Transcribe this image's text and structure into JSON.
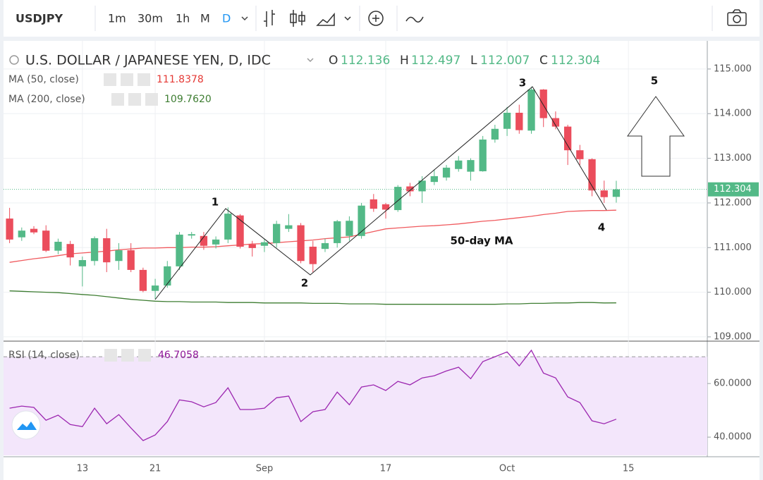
{
  "toolbar": {
    "symbol": "USDJPY",
    "intervals": [
      "1m",
      "30m",
      "1h",
      "M",
      "D"
    ]
  },
  "annotations": [
    "1",
    "2",
    "3",
    "4",
    "5",
    "50-day MA"
  ],
  "chart_data": [
    {
      "type": "candlestick",
      "title": "U.S. DOLLAR / JAPANESE YEN, D, IDC",
      "ohlc_letters": [
        "O",
        "H",
        "L",
        "C"
      ],
      "up_color": "#53b987",
      "down_color": "#eb4d5c",
      "categories": [
        null,
        null,
        null,
        null,
        null,
        null,
        "13",
        null,
        null,
        null,
        null,
        null,
        "21",
        null,
        null,
        null,
        null,
        null,
        null,
        null,
        null,
        "Sep",
        null,
        null,
        null,
        null,
        null,
        null,
        null,
        null,
        null,
        "17",
        null,
        null,
        null,
        null,
        null,
        null,
        null,
        null,
        null,
        "Oct",
        null,
        null,
        null,
        null,
        null,
        null,
        null,
        null,
        null,
        "15",
        null,
        null,
        null,
        null,
        null,
        null
      ],
      "open": [
        111.65,
        111.23,
        111.42,
        111.38,
        110.93,
        111.08,
        110.58,
        110.7,
        111.21,
        110.7,
        110.94,
        110.5,
        110.03,
        110.15,
        110.58,
        111.27,
        111.26,
        111.07,
        111.18,
        111.72,
        111.07,
        111.04,
        111.1,
        111.42,
        111.5,
        111.02,
        110.97,
        111.1,
        111.26,
        111.26,
        112.08,
        111.97,
        111.84,
        112.37,
        112.26,
        112.47,
        112.57,
        112.76,
        112.7,
        112.71,
        113.42,
        113.66,
        114.02,
        113.62,
        114.54,
        113.9,
        113.71,
        113.18,
        112.98,
        112.28,
        112.136,
        null,
        null,
        null,
        null,
        null,
        null,
        null
      ],
      "high": [
        111.89,
        111.45,
        111.48,
        111.5,
        111.2,
        111.15,
        110.8,
        111.25,
        111.42,
        111.1,
        111.1,
        110.55,
        110.3,
        110.7,
        111.35,
        111.35,
        111.35,
        111.25,
        111.9,
        111.75,
        111.15,
        111.2,
        111.6,
        111.75,
        111.55,
        111.15,
        111.2,
        111.62,
        111.7,
        112.0,
        112.2,
        112.0,
        112.4,
        112.45,
        112.6,
        112.75,
        112.85,
        113.05,
        113.0,
        113.5,
        113.75,
        114.15,
        114.2,
        114.6,
        114.55,
        114.05,
        113.75,
        113.3,
        113.0,
        112.5,
        112.497,
        null,
        null,
        null,
        null,
        null,
        null,
        null
      ],
      "low": [
        111.1,
        111.15,
        111.3,
        110.9,
        110.85,
        110.6,
        110.13,
        110.6,
        110.45,
        110.5,
        110.45,
        110.0,
        109.85,
        110.1,
        110.5,
        111.2,
        110.95,
        110.98,
        111.1,
        110.98,
        110.8,
        110.9,
        111.0,
        111.35,
        110.65,
        110.45,
        110.9,
        111.0,
        111.15,
        111.2,
        111.8,
        111.65,
        111.8,
        112.15,
        112.0,
        112.4,
        112.5,
        112.7,
        112.5,
        112.7,
        113.35,
        113.5,
        113.55,
        113.55,
        113.7,
        113.65,
        112.85,
        112.85,
        112.15,
        112.0,
        112.007,
        null,
        null,
        null,
        null,
        null,
        null,
        null
      ],
      "close": [
        111.18,
        111.38,
        111.34,
        110.93,
        111.13,
        110.78,
        110.72,
        111.21,
        110.67,
        110.94,
        110.5,
        110.03,
        110.15,
        110.58,
        111.29,
        111.3,
        111.04,
        111.18,
        111.76,
        111.02,
        110.99,
        111.12,
        111.53,
        111.5,
        110.7,
        110.63,
        111.1,
        111.59,
        111.6,
        111.94,
        111.87,
        111.85,
        112.36,
        112.26,
        112.5,
        112.6,
        112.79,
        112.95,
        112.96,
        113.42,
        113.66,
        114.02,
        113.63,
        114.54,
        113.9,
        113.71,
        113.18,
        112.98,
        112.28,
        112.13,
        112.304,
        null,
        null,
        null,
        null,
        null,
        null,
        null
      ],
      "series": [
        {
          "name": "MA (50, close)",
          "color": "#f05a5e",
          "values": [
            110.67,
            110.71,
            110.75,
            110.78,
            110.82,
            110.86,
            110.88,
            110.9,
            110.92,
            110.95,
            110.97,
            110.99,
            110.99,
            111.0,
            111.0,
            111.01,
            111.01,
            111.02,
            111.04,
            111.06,
            111.08,
            111.09,
            111.11,
            111.13,
            111.15,
            111.17,
            111.2,
            111.22,
            111.24,
            111.3,
            111.36,
            111.42,
            111.44,
            111.46,
            111.48,
            111.49,
            111.51,
            111.53,
            111.56,
            111.59,
            111.61,
            111.64,
            111.67,
            111.7,
            111.74,
            111.77,
            111.81,
            111.82,
            111.83,
            111.83,
            111.8378,
            null,
            null,
            null,
            null,
            null,
            null,
            null
          ]
        },
        {
          "name": "MA (200, close)",
          "color": "#3e7d32",
          "legend_label": "109.7620",
          "values": [
            110.03,
            110.02,
            110.01,
            110.0,
            109.99,
            109.97,
            109.95,
            109.93,
            109.9,
            109.87,
            109.84,
            109.82,
            109.8,
            109.79,
            109.79,
            109.78,
            109.78,
            109.78,
            109.77,
            109.77,
            109.77,
            109.76,
            109.76,
            109.76,
            109.76,
            109.75,
            109.75,
            109.75,
            109.74,
            109.74,
            109.74,
            109.73,
            109.73,
            109.73,
            109.73,
            109.73,
            109.73,
            109.73,
            109.73,
            109.73,
            109.73,
            109.74,
            109.74,
            109.75,
            109.75,
            109.76,
            109.76,
            109.77,
            109.77,
            109.76,
            109.762,
            null,
            null,
            null,
            null,
            null,
            null,
            null
          ]
        }
      ],
      "ylim": [
        108.92,
        115.63
      ],
      "yticks": [
        {
          "value": 115,
          "label": "115.000"
        },
        {
          "value": 114,
          "label": "114.000"
        },
        {
          "value": 113,
          "label": "113.000"
        },
        {
          "value": 112,
          "label": "112.000"
        },
        {
          "value": 111,
          "label": "111.000"
        },
        {
          "value": 110,
          "label": "110.000"
        },
        {
          "value": 109,
          "label": "109.000"
        }
      ],
      "grid": true
    },
    {
      "type": "line",
      "series": [
        {
          "name": "RSI (14, close)",
          "color": "#9c27b0",
          "values": [
            50.8,
            51.6,
            51.1,
            46.3,
            48.2,
            44.7,
            43.9,
            50.8,
            45.0,
            48.4,
            43.4,
            38.7,
            40.8,
            45.8,
            53.9,
            53.2,
            51.3,
            52.9,
            58.4,
            50.3,
            50.3,
            50.8,
            54.7,
            55.3,
            45.8,
            49.5,
            50.3,
            56.8,
            52.1,
            58.7,
            59.5,
            57.4,
            60.8,
            59.5,
            62.1,
            62.9,
            64.7,
            66.1,
            61.8,
            68.2,
            70.0,
            71.8,
            66.6,
            72.4,
            63.9,
            62.1,
            55.0,
            52.9,
            46.1,
            45.0,
            46.7058,
            null,
            null,
            null,
            null,
            null,
            null,
            null
          ]
        }
      ],
      "band": [
        30,
        70
      ],
      "band_color": "#f3e6fb",
      "ylim": [
        33.2,
        75.3
      ],
      "yticks": [
        {
          "value": 60,
          "label": "60.0000"
        },
        {
          "value": 40,
          "label": "40.0000"
        }
      ],
      "grid": true
    }
  ]
}
